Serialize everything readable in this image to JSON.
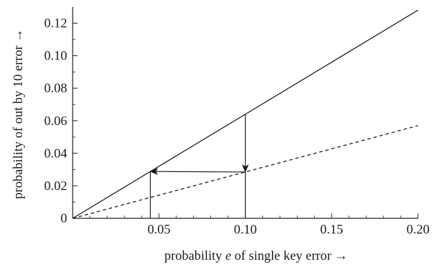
{
  "chart_data": {
    "type": "line",
    "xlabel": {
      "before": "probability ",
      "var": "e",
      "after": " of single key error  →"
    },
    "ylabel": "probability of out by 10 error  →",
    "xlim": [
      0,
      0.2
    ],
    "ylim": [
      0,
      0.13
    ],
    "x_ticks": [
      {
        "value": 0.05,
        "label": "0.05"
      },
      {
        "value": 0.1,
        "label": "0.10"
      },
      {
        "value": 0.15,
        "label": "0.15"
      },
      {
        "value": 0.2,
        "label": "0.20"
      }
    ],
    "y_ticks": [
      {
        "value": 0,
        "label": "0"
      },
      {
        "value": 0.02,
        "label": "0.02"
      },
      {
        "value": 0.04,
        "label": "0.04"
      },
      {
        "value": 0.06,
        "label": "0.06"
      },
      {
        "value": 0.08,
        "label": "0.08"
      },
      {
        "value": 0.1,
        "label": "0.10"
      },
      {
        "value": 0.12,
        "label": "0.12"
      }
    ],
    "series": [
      {
        "style": "solid",
        "x": [
          0,
          0.2
        ],
        "y": [
          0,
          0.128
        ]
      },
      {
        "style": "dashed",
        "x": [
          0,
          0.2
        ],
        "y": [
          0,
          0.057
        ]
      }
    ],
    "annotations": [
      {
        "style": "line",
        "x": [
          0.045,
          0.045
        ],
        "y": [
          0,
          0.0288
        ]
      },
      {
        "style": "line",
        "x": [
          0.1,
          0.1
        ],
        "y": [
          0,
          0.0285
        ]
      },
      {
        "style": "arrow",
        "x": [
          0.1,
          0.1
        ],
        "y": [
          0.064,
          0.0285
        ]
      },
      {
        "style": "arrow",
        "x": [
          0.1,
          0.045
        ],
        "y": [
          0.0285,
          0.0288
        ]
      }
    ],
    "grid": false,
    "colors": {
      "line": "#1a1a1a",
      "background": "#ffffff"
    }
  }
}
